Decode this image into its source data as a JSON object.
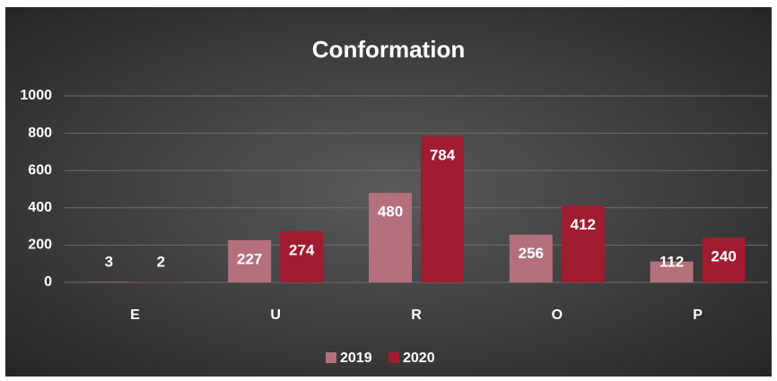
{
  "chart_data": {
    "type": "bar",
    "title": "Conformation",
    "categories": [
      "E",
      "U",
      "R",
      "O",
      "P"
    ],
    "series": [
      {
        "name": "2019",
        "color": "#b5707d",
        "values": [
          3,
          227,
          480,
          256,
          112
        ]
      },
      {
        "name": "2020",
        "color": "#a01c30",
        "values": [
          2,
          274,
          784,
          412,
          240
        ]
      }
    ],
    "ylim": [
      0,
      1000
    ],
    "yticks": [
      0,
      200,
      400,
      600,
      800,
      1000
    ],
    "grid": true,
    "legend": "bottom"
  }
}
